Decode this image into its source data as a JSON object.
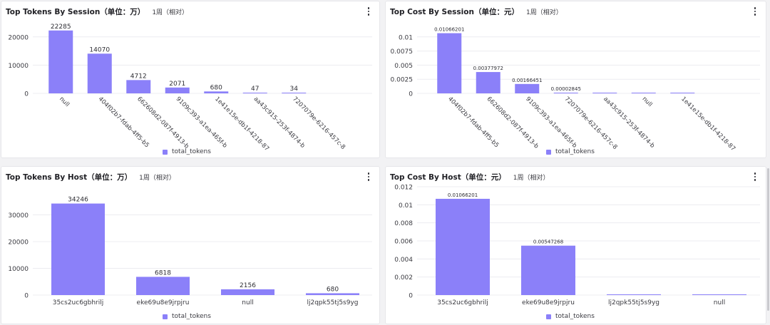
{
  "accent_color": "#8b80f9",
  "panels": [
    {
      "title": "Top Tokens By Session（单位：万）",
      "range": "1周（相对）",
      "legend_label": "total_tokens",
      "chart_data": {
        "type": "bar",
        "title": "Top Tokens By Session（单位：万）",
        "categories": [
          "null",
          "404f02b7-fdab-4ff5-b5",
          "662608d2-087f-4913-b",
          "9109c393-a1ea-465f-b",
          "1e41e15e-db1f-4218-87",
          "aa43c915-253f-4874-b",
          "7207079e-6216-457c-8"
        ],
        "values": [
          22285,
          14070,
          4712,
          2071,
          680,
          47,
          34
        ],
        "value_labels": [
          "22285",
          "14070",
          "4712",
          "2071",
          "680",
          "47",
          "34"
        ],
        "yticks": [
          0,
          10000,
          20000
        ],
        "ytick_labels": [
          "0",
          "10000",
          "20000"
        ],
        "ylim": [
          0,
          25000
        ],
        "rotate_labels": true,
        "series": [
          {
            "name": "total_tokens",
            "values": [
              22285,
              14070,
              4712,
              2071,
              680,
              47,
              34
            ]
          }
        ]
      }
    },
    {
      "title": "Top Cost By Session（单位：元）",
      "range": "1周（相对）",
      "legend_label": "total_tokens",
      "chart_data": {
        "type": "bar",
        "title": "Top Cost By Session（单位：元）",
        "categories": [
          "404f02b7-fdab-4ff5-b5",
          "662608d2-087f-4913-b",
          "9109c393-a1ea-465f-b",
          "7207079e-6216-457c-8",
          "aa43c915-253f-4874-b",
          "null",
          "1e41e15e-db1f-4218-87"
        ],
        "values": [
          0.01066201,
          0.00377972,
          0.00166451,
          2.845e-05,
          5e-06,
          3e-06,
          2e-06
        ],
        "value_labels": [
          "0.01066201",
          "0.00377972",
          "0.00166451",
          "0.00002845",
          "",
          "",
          ""
        ],
        "yticks": [
          0,
          0.0025,
          0.005,
          0.0075,
          0.01
        ],
        "ytick_labels": [
          "0",
          "0.0025",
          "0.005",
          "0.0075",
          "0.01"
        ],
        "ylim": [
          0,
          0.0125
        ],
        "rotate_labels": true,
        "series": [
          {
            "name": "total_tokens",
            "values": [
              0.01066201,
              0.00377972,
              0.00166451,
              2.845e-05,
              5e-06,
              3e-06,
              2e-06
            ]
          }
        ]
      }
    },
    {
      "title": "Top Tokens By Host（单位：万）",
      "range": "1周（相对）",
      "legend_label": "total_tokens",
      "chart_data": {
        "type": "bar",
        "title": "Top Tokens By Host（单位：万）",
        "categories": [
          "35cs2uc6gbhrilj",
          "eke69u8e9jrpjru",
          "null",
          "lj2qpk55tj5s9yg"
        ],
        "values": [
          34246,
          6818,
          2156,
          680
        ],
        "value_labels": [
          "34246",
          "6818",
          "2156",
          "680"
        ],
        "yticks": [
          0,
          10000,
          20000,
          30000
        ],
        "ytick_labels": [
          "0",
          "10000",
          "20000",
          "30000"
        ],
        "ylim": [
          0,
          40000
        ],
        "rotate_labels": false,
        "series": [
          {
            "name": "total_tokens",
            "values": [
              34246,
              6818,
              2156,
              680
            ]
          }
        ]
      }
    },
    {
      "title": "Top Cost By Host（单位：元）",
      "range": "1周（相对）",
      "legend_label": "total_tokens",
      "chart_data": {
        "type": "bar",
        "title": "Top Cost By Host（单位：元）",
        "categories": [
          "35cs2uc6gbhrilj",
          "eke69u8e9jrpjru",
          "lj2qpk55tj5s9yg",
          "null"
        ],
        "values": [
          0.01066201,
          0.00547268,
          8e-06,
          4e-06
        ],
        "value_labels": [
          "0.01066201",
          "0.00547268",
          "",
          ""
        ],
        "yticks": [
          0,
          0.002,
          0.004,
          0.006,
          0.008,
          0.01,
          0.012
        ],
        "ytick_labels": [
          "0",
          "0.002",
          "0.004",
          "0.006",
          "0.008",
          "0.01",
          "0.012"
        ],
        "ylim": [
          0,
          0.012
        ],
        "rotate_labels": false,
        "series": [
          {
            "name": "total_tokens",
            "values": [
              0.01066201,
              0.00547268,
              8e-06,
              4e-06
            ]
          }
        ]
      }
    }
  ]
}
